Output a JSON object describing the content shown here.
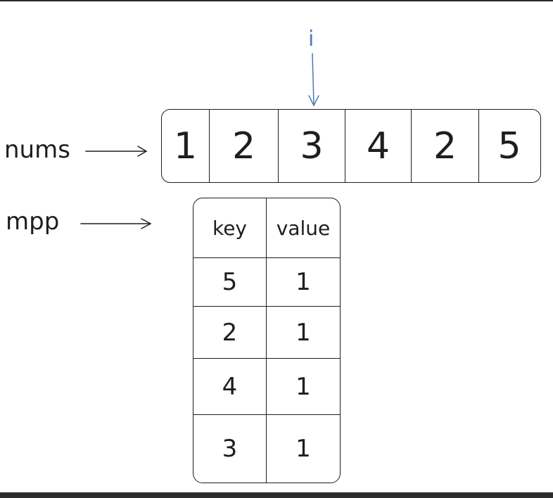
{
  "labels": {
    "nums": "nums",
    "mpp": "mpp",
    "pointer": "i"
  },
  "nums": [
    "1",
    "2",
    "3",
    "4",
    "2",
    "5"
  ],
  "pointer_index": 2,
  "mpp": {
    "headers": [
      "key",
      "value"
    ],
    "rows": [
      [
        "5",
        "1"
      ],
      [
        "2",
        "1"
      ],
      [
        "4",
        "1"
      ],
      [
        "3",
        "1"
      ]
    ]
  },
  "colors": {
    "ink": "#1e1e1e",
    "pointer": "#4a7bb7",
    "bottom_bar": "#2d2d2d"
  },
  "icons": {
    "nums_arrow": "right-arrow-icon",
    "mpp_arrow": "right-arrow-icon",
    "pointer_arrow": "down-arrow-icon"
  }
}
